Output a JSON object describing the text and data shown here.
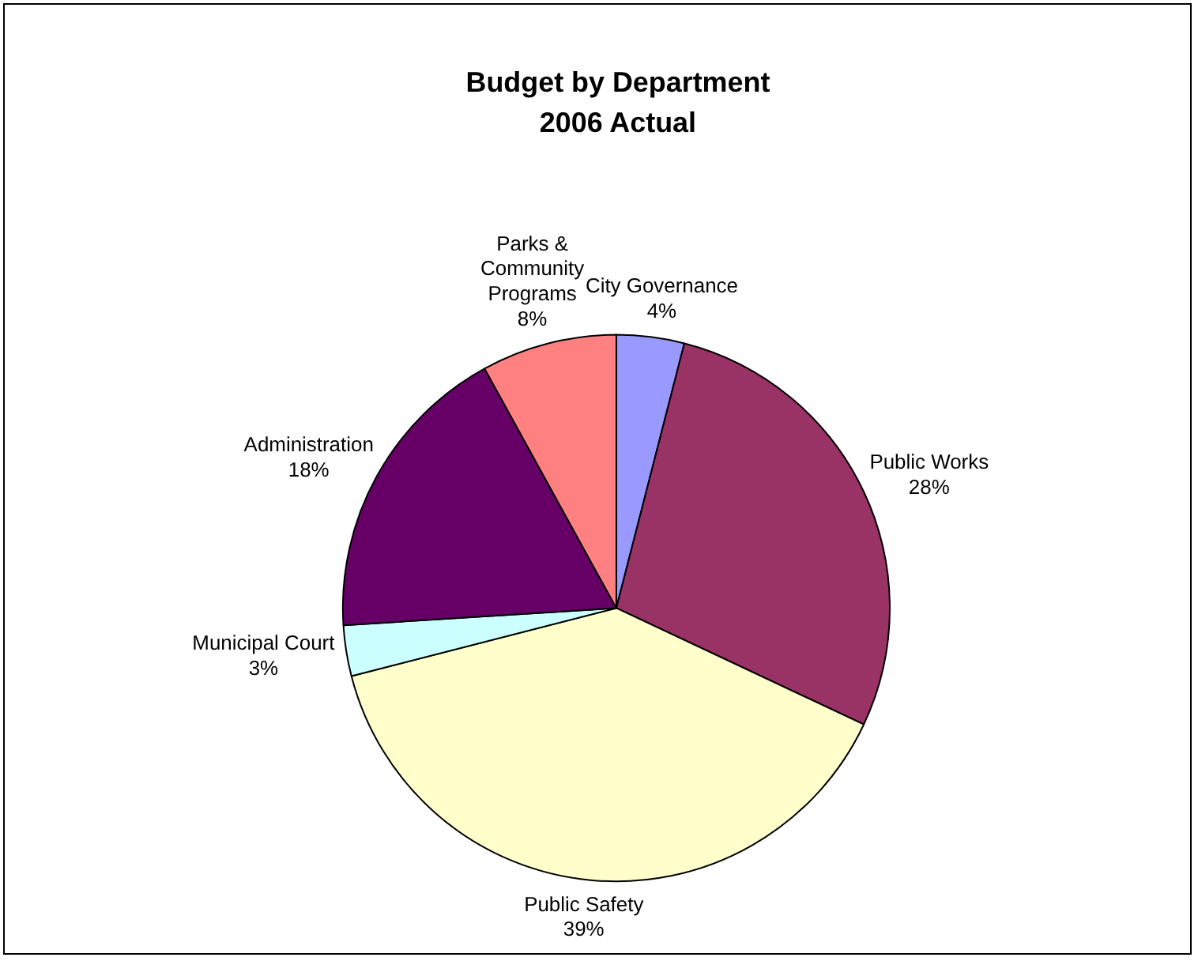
{
  "chart_data": {
    "type": "pie",
    "title": "Budget by Department\n2006 Actual",
    "categories": [
      "City Governance",
      "Public Works",
      "Public Safety",
      "Municipal Court",
      "Administration",
      "Parks & Community Programs"
    ],
    "values": [
      4,
      28,
      39,
      3,
      18,
      8
    ],
    "colors": [
      "#9999ff",
      "#993366",
      "#ffffcc",
      "#ccffff",
      "#660066",
      "#ff8080"
    ],
    "value_labels": [
      "4%",
      "28%",
      "39%",
      "3%",
      "18%",
      "8%"
    ],
    "legend": false
  }
}
